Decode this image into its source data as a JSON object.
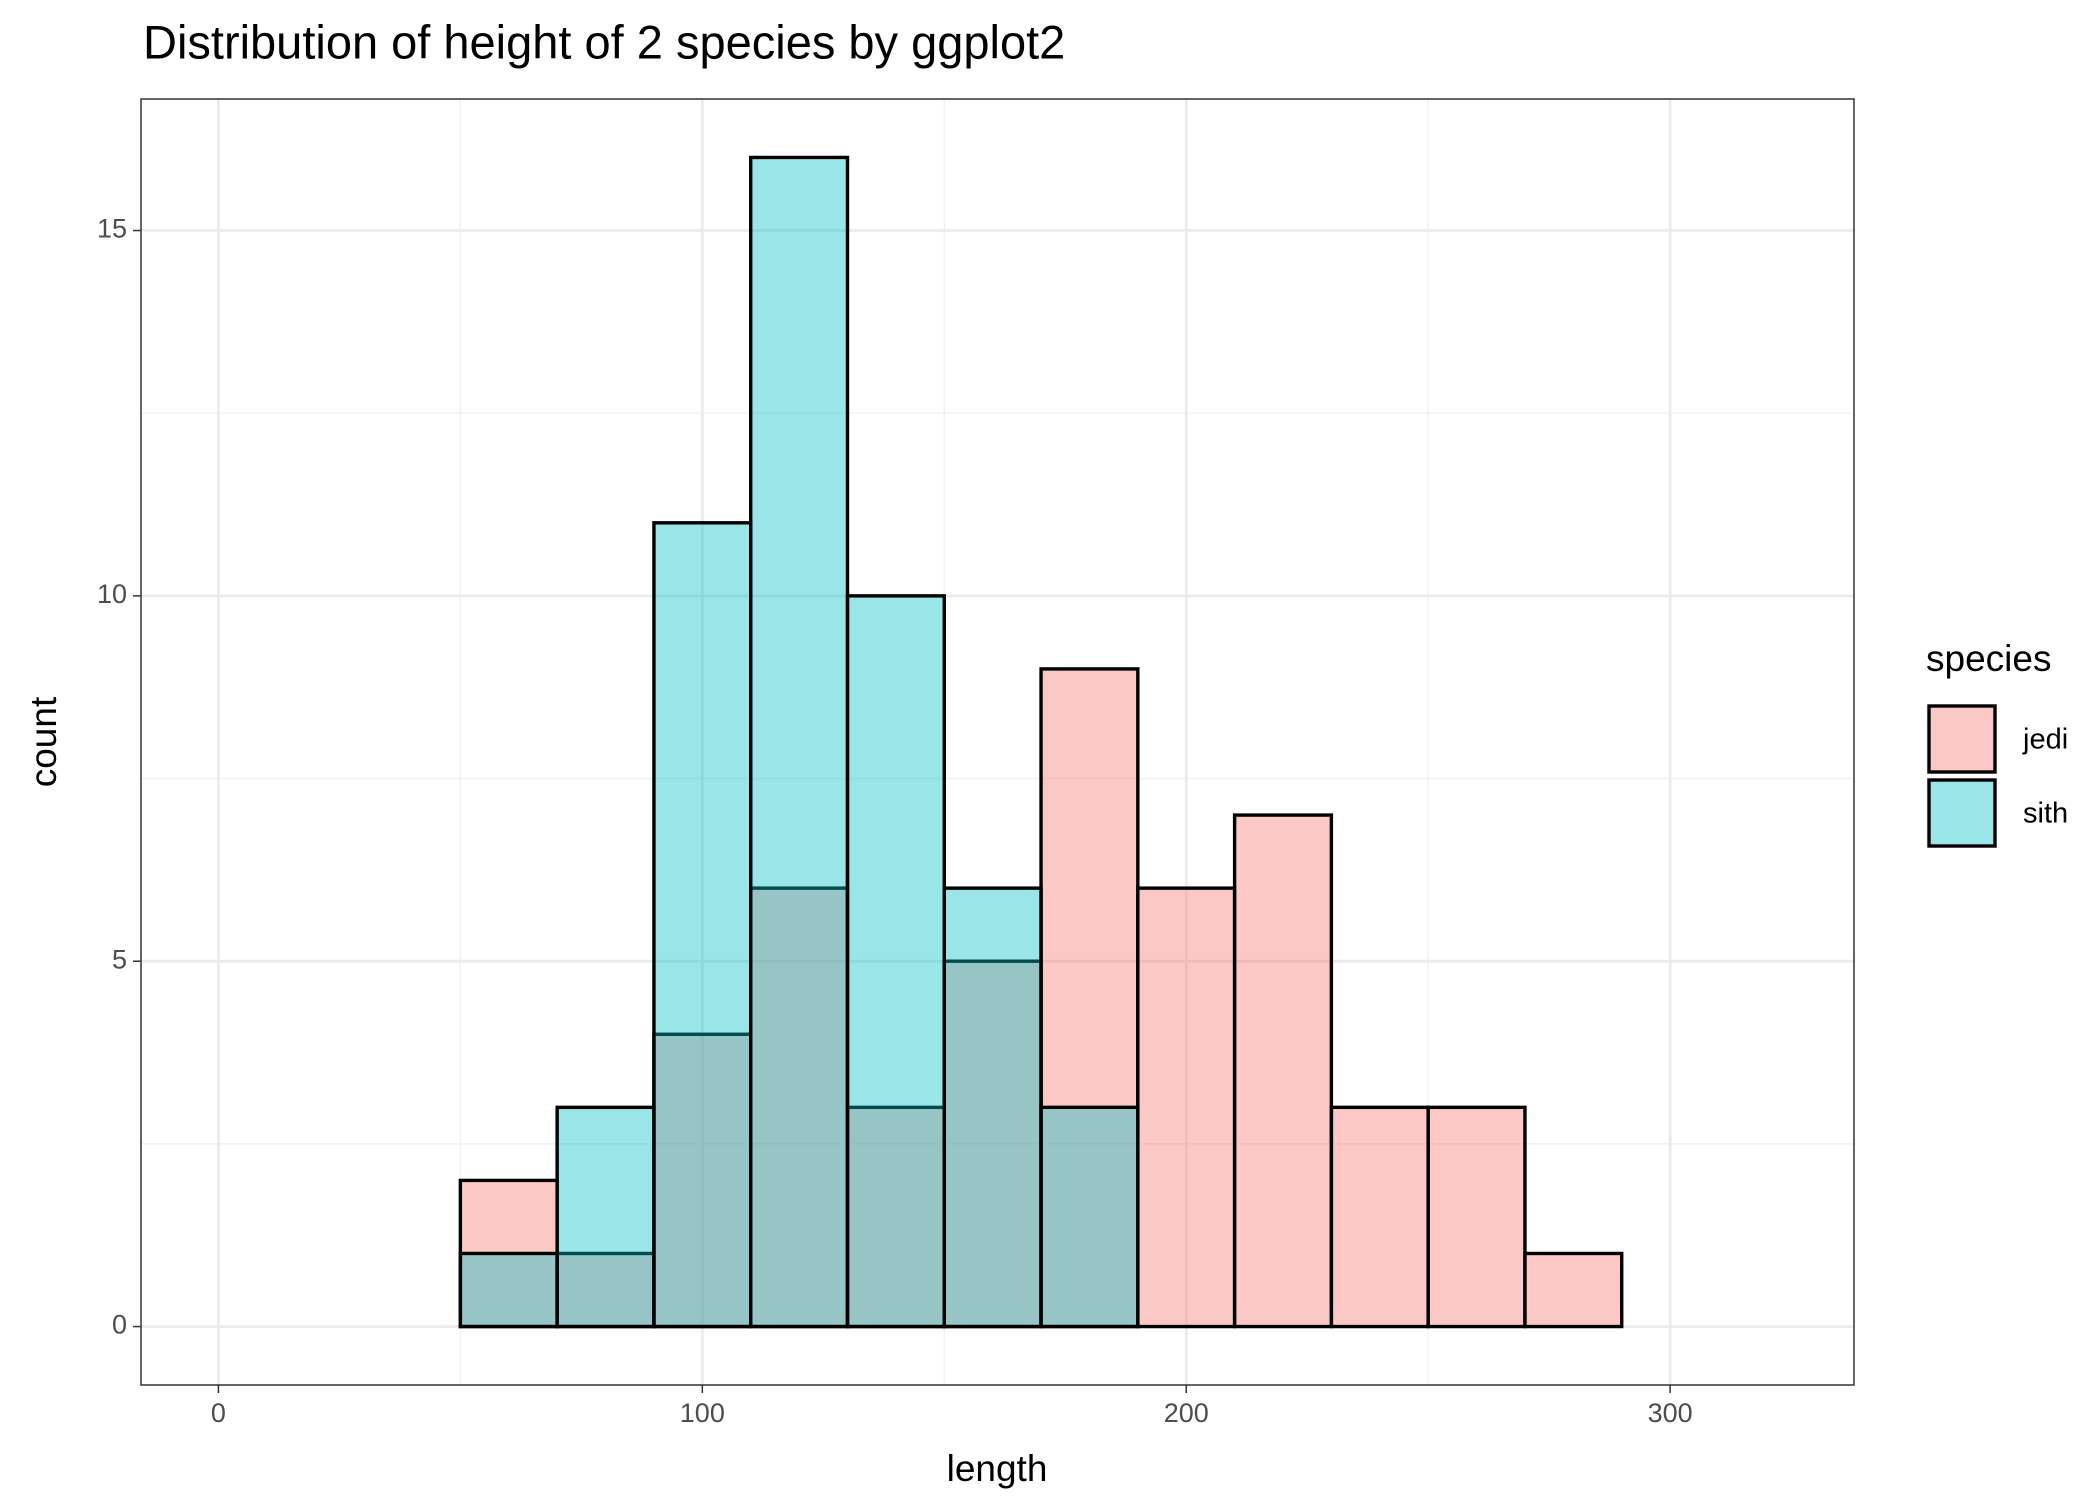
{
  "chart_data": {
    "type": "histogram",
    "title": "Distribution of height of 2 species by ggplot2",
    "x_label": "length",
    "y_label": "count",
    "legend_title": "species",
    "legend": "right",
    "bins": [
      10,
      30,
      50,
      70,
      90,
      110,
      130,
      150,
      170,
      190,
      210,
      230,
      250,
      270,
      290,
      310
    ],
    "series": [
      {
        "name": "jedi",
        "color": "#F8766D",
        "values": [
          0,
          0,
          2,
          1,
          4,
          6,
          3,
          5,
          9,
          6,
          7,
          3,
          3,
          1,
          0
        ]
      },
      {
        "name": "sith",
        "color": "#00BFC4",
        "values": [
          0,
          0,
          1,
          3,
          11,
          16,
          10,
          6,
          3,
          0,
          0,
          0,
          0,
          0,
          0
        ]
      }
    ],
    "alpha": 0.4,
    "xlim": [
      -16,
      338
    ],
    "ylim": [
      -0.8,
      16.8
    ],
    "xticks": [
      0,
      100,
      200,
      300
    ],
    "yticks": [
      0,
      5,
      10,
      15
    ],
    "grid": true
  }
}
